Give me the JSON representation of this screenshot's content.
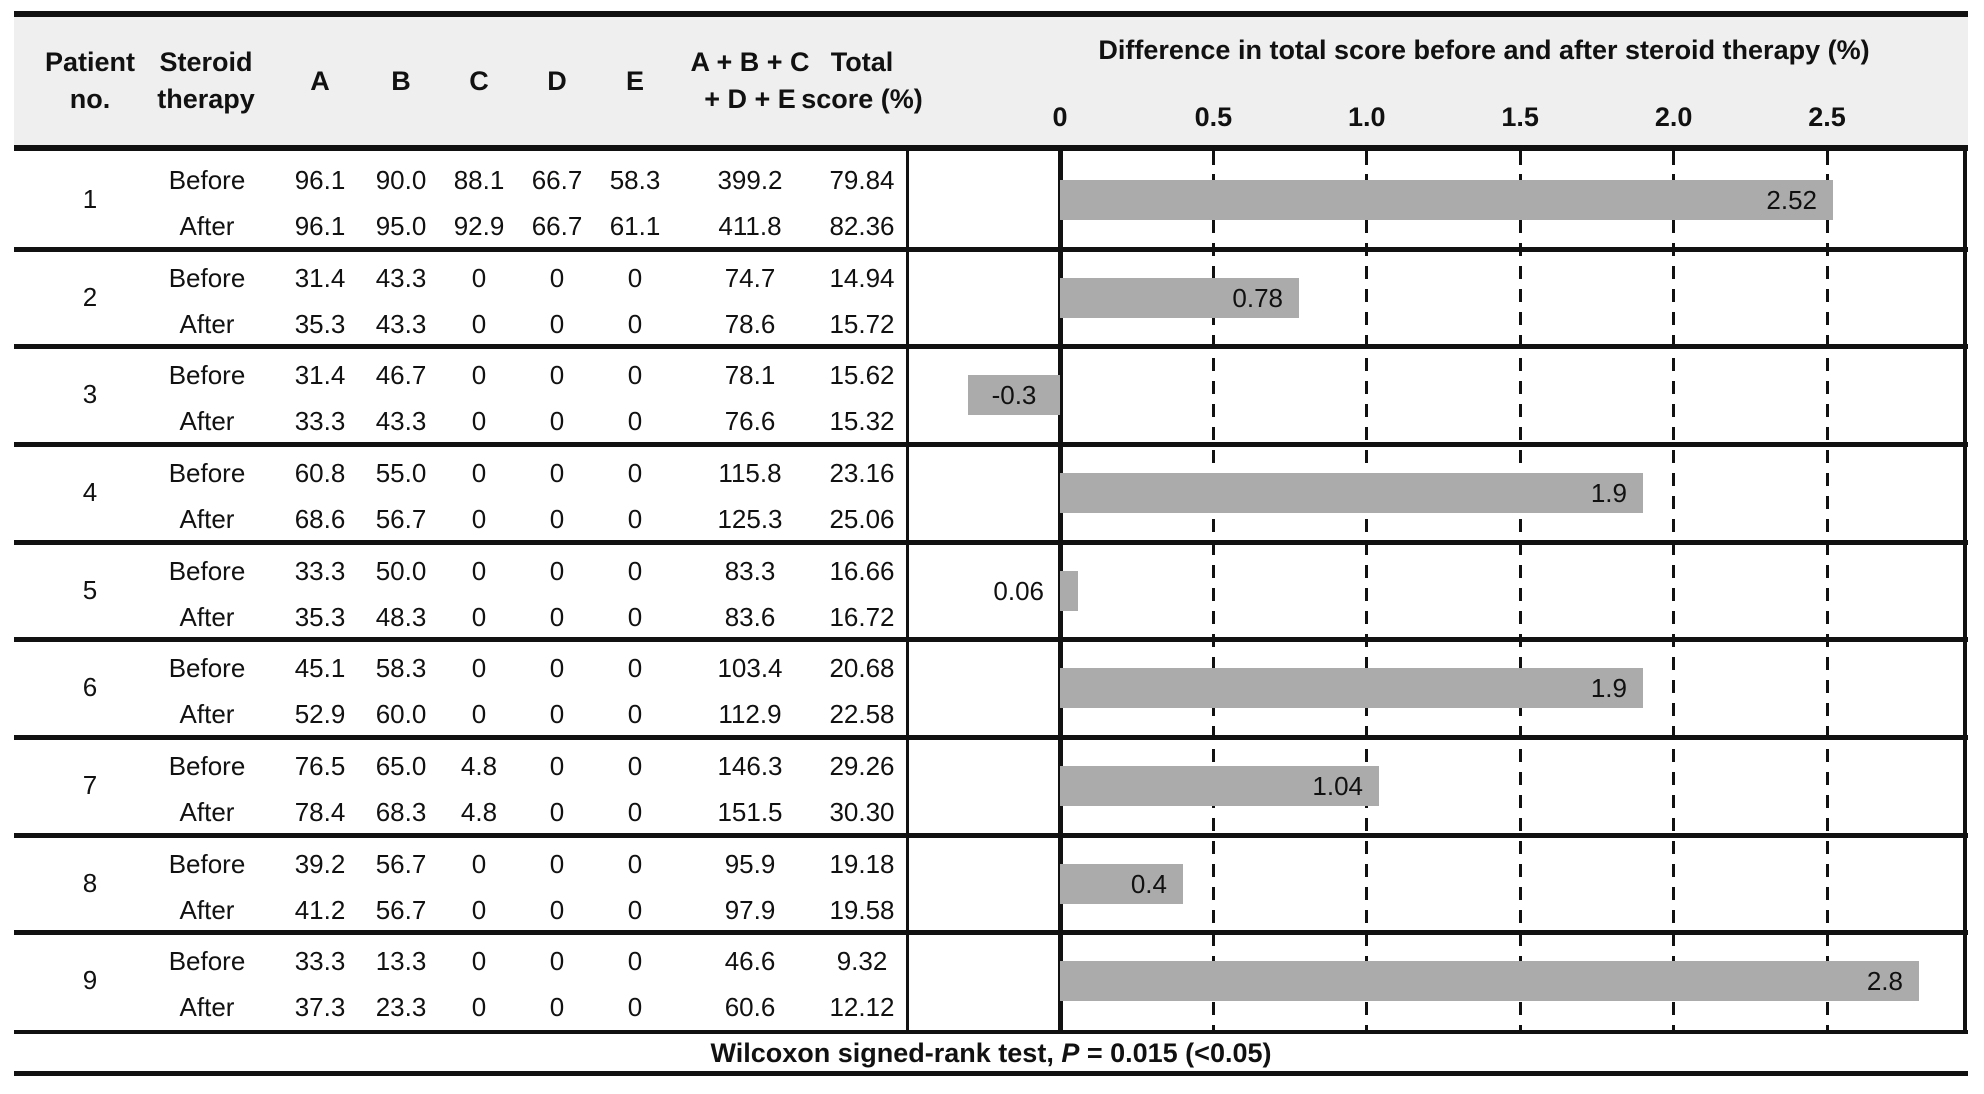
{
  "figure": {
    "header": {
      "patient": [
        "Patient",
        "no."
      ],
      "therapy": [
        "Steroid",
        "therapy"
      ],
      "a": "A",
      "b": "B",
      "c": "C",
      "d": "D",
      "e": "E",
      "sum": [
        "A + B + C",
        "+ D + E"
      ],
      "total": [
        "Total",
        "score (%)"
      ]
    },
    "chart_title": "Difference in total score before and after steroid therapy (%)",
    "footer": {
      "prefix": "Wilcoxon signed-rank test, ",
      "p": "P",
      "suffix": " = 0.015 (<0.05)"
    }
  },
  "patients": [
    {
      "no": "1",
      "before": {
        "therapy": "Before",
        "values": [
          "96.1",
          "90.0",
          "88.1",
          "66.7",
          "58.3",
          "399.2",
          "79.84"
        ]
      },
      "after": {
        "therapy": "After",
        "values": [
          "96.1",
          "95.0",
          "92.9",
          "66.7",
          "61.1",
          "411.8",
          "82.36"
        ]
      }
    },
    {
      "no": "2",
      "before": {
        "therapy": "Before",
        "values": [
          "31.4",
          "43.3",
          "0",
          "0",
          "0",
          "74.7",
          "14.94"
        ]
      },
      "after": {
        "therapy": "After",
        "values": [
          "35.3",
          "43.3",
          "0",
          "0",
          "0",
          "78.6",
          "15.72"
        ]
      }
    },
    {
      "no": "3",
      "before": {
        "therapy": "Before",
        "values": [
          "31.4",
          "46.7",
          "0",
          "0",
          "0",
          "78.1",
          "15.62"
        ]
      },
      "after": {
        "therapy": "After",
        "values": [
          "33.3",
          "43.3",
          "0",
          "0",
          "0",
          "76.6",
          "15.32"
        ]
      }
    },
    {
      "no": "4",
      "before": {
        "therapy": "Before",
        "values": [
          "60.8",
          "55.0",
          "0",
          "0",
          "0",
          "115.8",
          "23.16"
        ]
      },
      "after": {
        "therapy": "After",
        "values": [
          "68.6",
          "56.7",
          "0",
          "0",
          "0",
          "125.3",
          "25.06"
        ]
      }
    },
    {
      "no": "5",
      "before": {
        "therapy": "Before",
        "values": [
          "33.3",
          "50.0",
          "0",
          "0",
          "0",
          "83.3",
          "16.66"
        ]
      },
      "after": {
        "therapy": "After",
        "values": [
          "35.3",
          "48.3",
          "0",
          "0",
          "0",
          "83.6",
          "16.72"
        ]
      }
    },
    {
      "no": "6",
      "before": {
        "therapy": "Before",
        "values": [
          "45.1",
          "58.3",
          "0",
          "0",
          "0",
          "103.4",
          "20.68"
        ]
      },
      "after": {
        "therapy": "After",
        "values": [
          "52.9",
          "60.0",
          "0",
          "0",
          "0",
          "112.9",
          "22.58"
        ]
      }
    },
    {
      "no": "7",
      "before": {
        "therapy": "Before",
        "values": [
          "76.5",
          "65.0",
          "4.8",
          "0",
          "0",
          "146.3",
          "29.26"
        ]
      },
      "after": {
        "therapy": "After",
        "values": [
          "78.4",
          "68.3",
          "4.8",
          "0",
          "0",
          "151.5",
          "30.30"
        ]
      }
    },
    {
      "no": "8",
      "before": {
        "therapy": "Before",
        "values": [
          "39.2",
          "56.7",
          "0",
          "0",
          "0",
          "95.9",
          "19.18"
        ]
      },
      "after": {
        "therapy": "After",
        "values": [
          "41.2",
          "56.7",
          "0",
          "0",
          "0",
          "97.9",
          "19.58"
        ]
      }
    },
    {
      "no": "9",
      "before": {
        "therapy": "Before",
        "values": [
          "33.3",
          "13.3",
          "0",
          "0",
          "0",
          "46.6",
          "9.32"
        ]
      },
      "after": {
        "therapy": "After",
        "values": [
          "37.3",
          "23.3",
          "0",
          "0",
          "0",
          "60.6",
          "12.12"
        ]
      }
    }
  ],
  "chart_data": {
    "type": "bar",
    "orientation": "horizontal",
    "title": "Difference in total score before and after steroid therapy (%)",
    "categories": [
      "1",
      "2",
      "3",
      "4",
      "5",
      "6",
      "7",
      "8",
      "9"
    ],
    "values": [
      2.52,
      0.78,
      -0.3,
      1.9,
      0.06,
      1.9,
      1.04,
      0.4,
      2.8
    ],
    "bar_labels": [
      "2.52",
      "0.78",
      "-0.3",
      "1.9",
      "0.06",
      "1.9",
      "1.04",
      "0.4",
      "2.8"
    ],
    "label_placement": [
      "in",
      "in",
      "center",
      "in",
      "out-left",
      "in",
      "in",
      "in",
      "in"
    ],
    "xticks": [
      0,
      0.5,
      1.0,
      1.5,
      2.0,
      2.5
    ],
    "tick_labels": [
      "0",
      "0.5",
      "1.0",
      "1.5",
      "2.0",
      "2.5"
    ],
    "xlim": [
      -0.5,
      2.96
    ],
    "grid": "dashed vertical gridlines at 0.5 intervals, solid line at 0",
    "legend": "none",
    "bar_color": "#ababab",
    "annotation": "Wilcoxon signed-rank test, P = 0.015 (<0.05)"
  }
}
